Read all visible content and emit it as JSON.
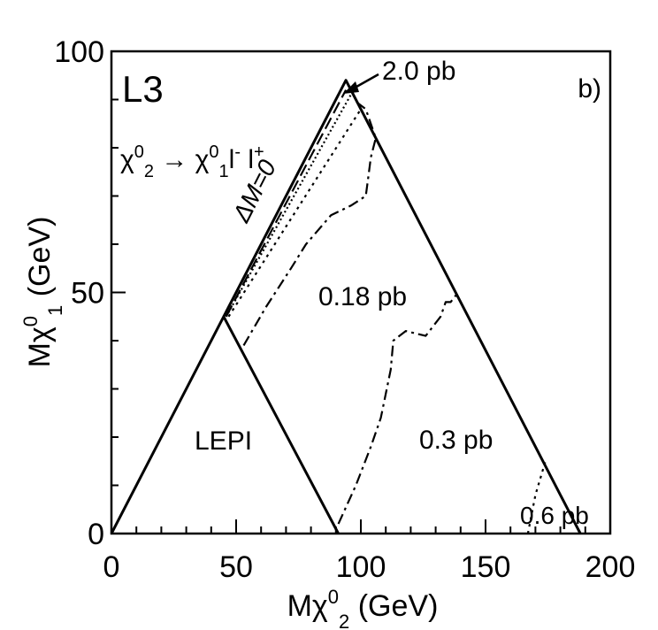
{
  "chart_data": {
    "type": "line",
    "panel_label": "b)",
    "experiment": "L3",
    "process_label": {
      "chi": "χ",
      "sub2": "2",
      "sup0": "0",
      "arrow": "→",
      "sub1": "1",
      "lepton_minus": "l",
      "minus": "-",
      "lepton_plus": "l",
      "plus": "+"
    },
    "xlabel": {
      "prefix": "M",
      "chi": "χ",
      "tilde": "~",
      "sub": "2",
      "sup": "0",
      "unit": "(GeV)"
    },
    "ylabel": {
      "prefix": "M",
      "chi": "χ",
      "tilde": "~",
      "sub": "1",
      "sup": "0",
      "unit": "(GeV)"
    },
    "xlim": [
      0,
      200
    ],
    "ylim": [
      0,
      100
    ],
    "x_ticks": [
      "0",
      "50",
      "100",
      "150",
      "200"
    ],
    "y_ticks": [
      "0",
      "50",
      "100"
    ],
    "kinematic_boundary": {
      "label": "ΔM=0",
      "x": [
        45,
        94,
        188
      ],
      "y": [
        45,
        94,
        0
      ]
    },
    "lep1_region": {
      "label": "LEPI",
      "x": [
        0,
        45,
        91
      ],
      "y": [
        0,
        45,
        0
      ]
    },
    "contours": [
      {
        "label": "2.0 pb",
        "style": "dashed",
        "x": [
          46,
          94
        ],
        "y": [
          45,
          92
        ]
      },
      {
        "label": "",
        "style": "dotted-fine",
        "x": [
          46,
          96
        ],
        "y": [
          45,
          91
        ]
      },
      {
        "label": "",
        "style": "dotted",
        "x": [
          47,
          100
        ],
        "y": [
          45,
          88
        ]
      },
      {
        "label": "0.18 pb",
        "style": "dash-dot",
        "x": [
          53,
          62,
          72,
          78,
          88,
          96,
          102,
          103,
          104,
          106,
          104,
          102,
          97
        ],
        "y": [
          39,
          47,
          55,
          60,
          66,
          68,
          70,
          74,
          78,
          82,
          85,
          88,
          90
        ]
      },
      {
        "label": "0.3 pb",
        "style": "dash-dot",
        "x": [
          91,
          98,
          104,
          108,
          110,
          112,
          113,
          118,
          126,
          132,
          134,
          136,
          139
        ],
        "y": [
          2,
          10,
          18,
          24,
          29,
          34,
          40,
          42,
          41,
          45,
          48,
          48,
          50
        ]
      },
      {
        "label": "0.6 pb",
        "style": "dotted",
        "x": [
          167,
          170,
          174
        ],
        "y": [
          0,
          8,
          15
        ]
      }
    ],
    "bottom_edge": {
      "style": "dotted",
      "x": [
        91,
        188
      ],
      "y": [
        0,
        0
      ]
    },
    "annotations": [
      "2.0 pb",
      "0.18 pb",
      "0.3 pb",
      "0.6 pb",
      "LEPI",
      "ΔM=0",
      "L3",
      "b)"
    ]
  }
}
